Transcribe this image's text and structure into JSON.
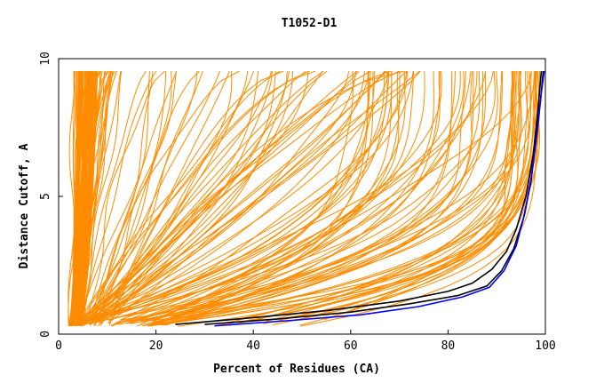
{
  "chart_data": {
    "type": "line",
    "title": "T1052-D1",
    "xlabel": "Percent of Residues (CA)",
    "ylabel": "Distance Cutoff, A",
    "xlim": [
      0,
      100
    ],
    "ylim": [
      0,
      10
    ],
    "xticks": [
      "0",
      "20",
      "40",
      "60",
      "80",
      "100"
    ],
    "yticks": [
      "0",
      "5",
      "10"
    ],
    "grid": false,
    "series_colors": {
      "models": "#ff8c00",
      "highlight_dark": "#000000",
      "highlight_blue": "#0000ff"
    },
    "model_curve_count": 160,
    "highlight_series": [
      {
        "color": "#000000",
        "x": [
          24,
          40,
          55,
          70,
          80,
          85,
          89,
          92,
          94,
          96,
          97.5,
          98.5,
          99.2
        ],
        "y": [
          0.35,
          0.6,
          0.85,
          1.2,
          1.55,
          1.85,
          2.35,
          3.0,
          3.8,
          5.0,
          6.5,
          8.2,
          9.6
        ]
      },
      {
        "color": "#000000",
        "x": [
          30,
          45,
          60,
          72,
          82,
          88,
          91,
          93.5,
          95.5,
          97,
          98,
          99,
          99.6
        ],
        "y": [
          0.35,
          0.55,
          0.8,
          1.1,
          1.4,
          1.75,
          2.3,
          3.1,
          4.2,
          5.5,
          7.0,
          8.5,
          9.6
        ]
      },
      {
        "color": "#0000ff",
        "x": [
          32,
          48,
          62,
          74,
          83,
          88.5,
          91.5,
          94,
          95.8,
          97.2,
          98.3,
          99.2,
          99.8
        ],
        "y": [
          0.3,
          0.5,
          0.7,
          1.0,
          1.35,
          1.7,
          2.3,
          3.2,
          4.4,
          5.8,
          7.3,
          8.8,
          9.6
        ]
      }
    ]
  }
}
